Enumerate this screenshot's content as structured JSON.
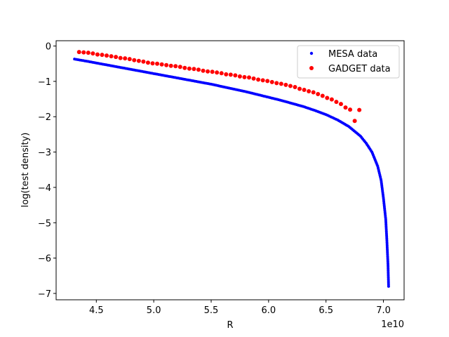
{
  "chart_data": {
    "type": "scatter",
    "xlabel": "R",
    "ylabel": "log(test density)",
    "x_offset_label": "1e10",
    "xlim": [
      4.15,
      7.18
    ],
    "ylim": [
      -7.18,
      0.15
    ],
    "xticks": [
      "4.5",
      "5.0",
      "5.5",
      "6.0",
      "6.5",
      "7.0"
    ],
    "xtick_values": [
      4.5,
      5.0,
      5.5,
      6.0,
      6.5,
      7.0
    ],
    "yticks": [
      "0",
      "−1",
      "−2",
      "−3",
      "−4",
      "−5",
      "−6",
      "−7"
    ],
    "ytick_values": [
      0,
      -1,
      -2,
      -3,
      -4,
      -5,
      -6,
      -7
    ],
    "grid": false,
    "legend_position": "top-right",
    "series": [
      {
        "name": "MESA data",
        "color": "#0000ff",
        "marker": "small-dot",
        "x": [
          4.31,
          4.4,
          4.5,
          4.6,
          4.7,
          4.8,
          4.9,
          5.0,
          5.1,
          5.2,
          5.3,
          5.4,
          5.5,
          5.6,
          5.7,
          5.8,
          5.9,
          6.0,
          6.1,
          6.2,
          6.3,
          6.4,
          6.5,
          6.6,
          6.7,
          6.8,
          6.85,
          6.9,
          6.95,
          6.98,
          7.0,
          7.02,
          7.03,
          7.04,
          7.045
        ],
        "y": [
          -0.37,
          -0.42,
          -0.48,
          -0.54,
          -0.6,
          -0.66,
          -0.72,
          -0.78,
          -0.84,
          -0.9,
          -0.96,
          -1.02,
          -1.08,
          -1.15,
          -1.22,
          -1.29,
          -1.37,
          -1.45,
          -1.53,
          -1.62,
          -1.71,
          -1.82,
          -1.94,
          -2.09,
          -2.28,
          -2.55,
          -2.75,
          -3.0,
          -3.4,
          -3.8,
          -4.3,
          -4.9,
          -5.5,
          -6.2,
          -6.8
        ]
      },
      {
        "name": "GADGET data",
        "color": "#ff0000",
        "marker": "dot",
        "x": [
          4.35,
          4.39,
          4.43,
          4.47,
          4.51,
          4.55,
          4.59,
          4.63,
          4.67,
          4.71,
          4.75,
          4.79,
          4.83,
          4.87,
          4.91,
          4.95,
          4.99,
          5.03,
          5.07,
          5.11,
          5.15,
          5.19,
          5.23,
          5.27,
          5.31,
          5.35,
          5.39,
          5.43,
          5.47,
          5.51,
          5.55,
          5.59,
          5.63,
          5.67,
          5.71,
          5.75,
          5.79,
          5.83,
          5.87,
          5.91,
          5.95,
          5.99,
          6.03,
          6.07,
          6.11,
          6.15,
          6.19,
          6.23,
          6.27,
          6.31,
          6.35,
          6.39,
          6.43,
          6.47,
          6.51,
          6.55,
          6.59,
          6.63,
          6.67,
          6.71,
          6.75,
          6.79
        ],
        "y": [
          -0.17,
          -0.18,
          -0.19,
          -0.21,
          -0.24,
          -0.25,
          -0.27,
          -0.29,
          -0.31,
          -0.34,
          -0.35,
          -0.37,
          -0.4,
          -0.42,
          -0.44,
          -0.47,
          -0.49,
          -0.5,
          -0.52,
          -0.54,
          -0.56,
          -0.57,
          -0.59,
          -0.62,
          -0.64,
          -0.65,
          -0.67,
          -0.7,
          -0.72,
          -0.73,
          -0.75,
          -0.77,
          -0.8,
          -0.81,
          -0.83,
          -0.86,
          -0.88,
          -0.89,
          -0.92,
          -0.95,
          -0.97,
          -0.99,
          -1.02,
          -1.05,
          -1.07,
          -1.1,
          -1.13,
          -1.16,
          -1.21,
          -1.24,
          -1.28,
          -1.31,
          -1.36,
          -1.41,
          -1.47,
          -1.51,
          -1.58,
          -1.64,
          -1.74,
          -1.8,
          -2.12,
          -1.81
        ]
      }
    ]
  }
}
